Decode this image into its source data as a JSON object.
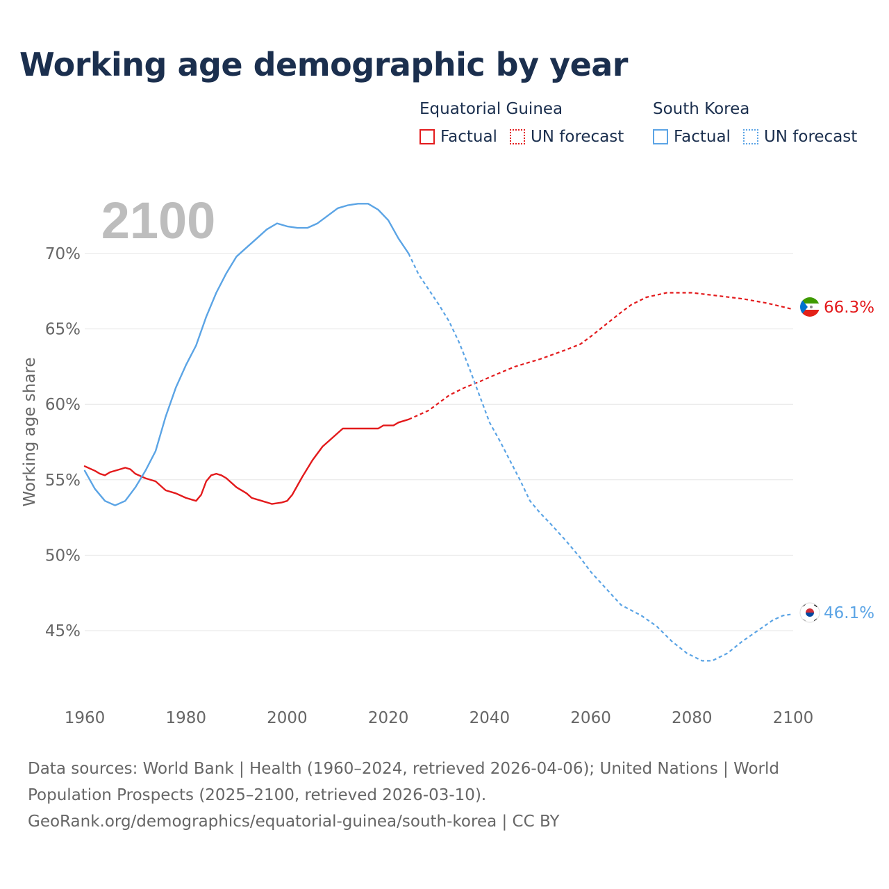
{
  "title": "Working age demographic by year",
  "legend": {
    "groups": [
      {
        "country": "Equatorial Guinea",
        "color": "#e31a1c",
        "items": [
          {
            "label": "Factual",
            "style": "solid"
          },
          {
            "label": "UN forecast",
            "style": "dotted"
          }
        ]
      },
      {
        "country": "South Korea",
        "color": "#5ba4e5",
        "items": [
          {
            "label": "Factual",
            "style": "solid"
          },
          {
            "label": "UN forecast",
            "style": "dotted"
          }
        ]
      }
    ]
  },
  "year_marker": "2100",
  "footer": {
    "line1": "Data sources: World Bank | Health (1960–2024, retrieved 2026-04-06); United Nations | World",
    "line2": "Population Prospects (2025–2100, retrieved 2026-03-10).",
    "line3": "GeoRank.org/demographics/equatorial-guinea/south-korea | CC BY"
  },
  "chart_data": {
    "type": "line",
    "title": "Working age demographic by year",
    "xlabel": "",
    "ylabel": "Working age share",
    "xlim": [
      1960,
      2100
    ],
    "ylim": [
      40.7,
      74.1
    ],
    "x_ticks": [
      1960,
      1980,
      2000,
      2020,
      2040,
      2060,
      2080,
      2100
    ],
    "x_tick_labels": [
      "1960",
      "1980",
      "2000",
      "2020",
      "2040",
      "2060",
      "2080",
      "2100"
    ],
    "y_ticks": [
      45,
      50,
      55,
      60,
      65,
      70
    ],
    "y_tick_labels": [
      "45%",
      "50%",
      "55%",
      "60%",
      "65%",
      "70%"
    ],
    "grid": true,
    "factual_range": [
      1960,
      2024
    ],
    "forecast_range": [
      2024,
      2100
    ],
    "series": [
      {
        "name": "Equatorial Guinea",
        "color": "#e31a1c",
        "end_label": "66.3%",
        "points": [
          [
            1960,
            55.9
          ],
          [
            1962,
            55.6
          ],
          [
            1963,
            55.4
          ],
          [
            1964,
            55.3
          ],
          [
            1965,
            55.5
          ],
          [
            1967,
            55.7
          ],
          [
            1968,
            55.8
          ],
          [
            1969,
            55.7
          ],
          [
            1970,
            55.4
          ],
          [
            1972,
            55.1
          ],
          [
            1974,
            54.9
          ],
          [
            1976,
            54.3
          ],
          [
            1978,
            54.1
          ],
          [
            1980,
            53.8
          ],
          [
            1982,
            53.6
          ],
          [
            1983,
            54.0
          ],
          [
            1984,
            54.9
          ],
          [
            1985,
            55.3
          ],
          [
            1986,
            55.4
          ],
          [
            1987,
            55.3
          ],
          [
            1988,
            55.1
          ],
          [
            1990,
            54.5
          ],
          [
            1992,
            54.1
          ],
          [
            1993,
            53.8
          ],
          [
            1995,
            53.6
          ],
          [
            1997,
            53.4
          ],
          [
            1999,
            53.5
          ],
          [
            2000,
            53.6
          ],
          [
            2001,
            54.0
          ],
          [
            2003,
            55.2
          ],
          [
            2005,
            56.3
          ],
          [
            2007,
            57.2
          ],
          [
            2009,
            57.8
          ],
          [
            2011,
            58.4
          ],
          [
            2013,
            58.4
          ],
          [
            2017,
            58.4
          ],
          [
            2018,
            58.4
          ],
          [
            2019,
            58.6
          ],
          [
            2021,
            58.6
          ],
          [
            2022,
            58.8
          ],
          [
            2024,
            59.0
          ],
          [
            2026,
            59.3
          ],
          [
            2028,
            59.6
          ],
          [
            2030,
            60.1
          ],
          [
            2032,
            60.6
          ],
          [
            2035,
            61.1
          ],
          [
            2038,
            61.5
          ],
          [
            2040,
            61.8
          ],
          [
            2045,
            62.5
          ],
          [
            2050,
            63.0
          ],
          [
            2055,
            63.6
          ],
          [
            2058,
            64.0
          ],
          [
            2060,
            64.5
          ],
          [
            2063,
            65.3
          ],
          [
            2066,
            66.1
          ],
          [
            2068,
            66.6
          ],
          [
            2071,
            67.1
          ],
          [
            2075,
            67.4
          ],
          [
            2080,
            67.4
          ],
          [
            2085,
            67.2
          ],
          [
            2090,
            67.0
          ],
          [
            2095,
            66.7
          ],
          [
            2100,
            66.3
          ]
        ]
      },
      {
        "name": "South Korea",
        "color": "#5ba4e5",
        "end_label": "46.1%",
        "points": [
          [
            1960,
            55.6
          ],
          [
            1962,
            54.4
          ],
          [
            1964,
            53.6
          ],
          [
            1966,
            53.3
          ],
          [
            1968,
            53.6
          ],
          [
            1970,
            54.5
          ],
          [
            1972,
            55.6
          ],
          [
            1974,
            56.9
          ],
          [
            1976,
            59.2
          ],
          [
            1978,
            61.1
          ],
          [
            1980,
            62.6
          ],
          [
            1982,
            63.9
          ],
          [
            1984,
            65.8
          ],
          [
            1986,
            67.4
          ],
          [
            1988,
            68.7
          ],
          [
            1990,
            69.8
          ],
          [
            1992,
            70.4
          ],
          [
            1994,
            71.0
          ],
          [
            1996,
            71.6
          ],
          [
            1998,
            72.0
          ],
          [
            2000,
            71.8
          ],
          [
            2002,
            71.7
          ],
          [
            2004,
            71.7
          ],
          [
            2006,
            72.0
          ],
          [
            2008,
            72.5
          ],
          [
            2010,
            73.0
          ],
          [
            2012,
            73.2
          ],
          [
            2014,
            73.3
          ],
          [
            2016,
            73.3
          ],
          [
            2018,
            72.9
          ],
          [
            2020,
            72.2
          ],
          [
            2022,
            71.0
          ],
          [
            2024,
            70.0
          ],
          [
            2026,
            68.6
          ],
          [
            2028,
            67.6
          ],
          [
            2030,
            66.6
          ],
          [
            2032,
            65.5
          ],
          [
            2034,
            64.1
          ],
          [
            2036,
            62.4
          ],
          [
            2038,
            60.6
          ],
          [
            2040,
            58.8
          ],
          [
            2042,
            57.6
          ],
          [
            2044,
            56.3
          ],
          [
            2046,
            55.0
          ],
          [
            2048,
            53.6
          ],
          [
            2050,
            52.8
          ],
          [
            2052,
            52.1
          ],
          [
            2055,
            51.0
          ],
          [
            2058,
            49.8
          ],
          [
            2060,
            48.9
          ],
          [
            2063,
            47.8
          ],
          [
            2066,
            46.7
          ],
          [
            2070,
            46.0
          ],
          [
            2073,
            45.3
          ],
          [
            2076,
            44.3
          ],
          [
            2079,
            43.5
          ],
          [
            2082,
            43.0
          ],
          [
            2084,
            43.0
          ],
          [
            2087,
            43.5
          ],
          [
            2090,
            44.3
          ],
          [
            2093,
            45.0
          ],
          [
            2096,
            45.7
          ],
          [
            2098,
            46.0
          ],
          [
            2100,
            46.1
          ]
        ]
      }
    ]
  }
}
